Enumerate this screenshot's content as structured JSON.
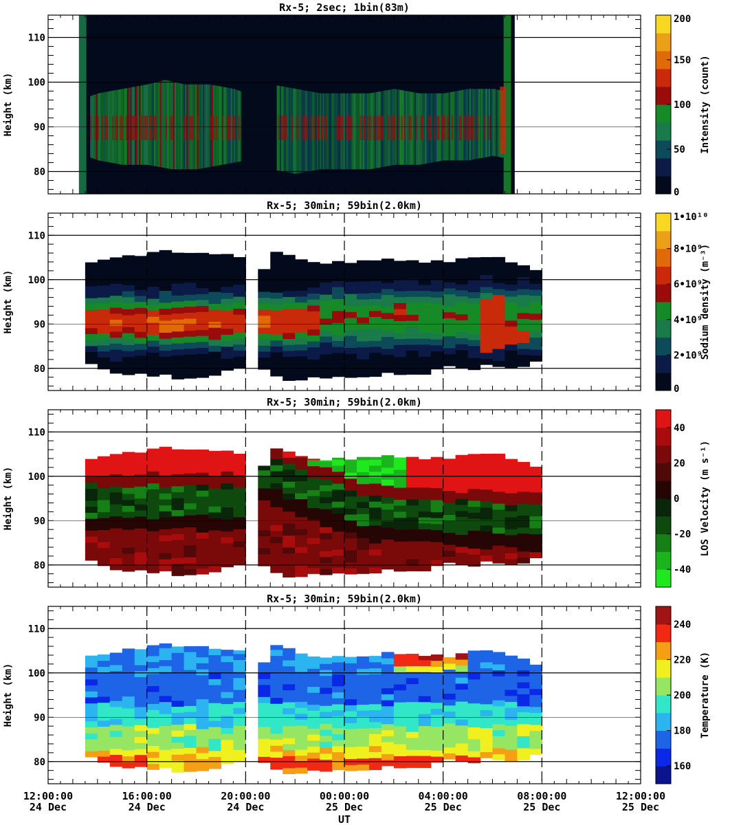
{
  "chart_data": [
    {
      "type": "heatmap",
      "title": "Rx-5;  2sec; 1bin(83m)",
      "ylabel": "Height (km)",
      "ylim": [
        75,
        115
      ],
      "yticks": [
        "80",
        "90",
        "100",
        "110"
      ],
      "colorbar_label": "Intensity (count)",
      "colorbar_ticks": [
        "0",
        "50",
        "100",
        "150",
        "200"
      ],
      "colorbar_range": [
        0,
        200
      ],
      "colors": [
        "#020a1c",
        "#0c1a48",
        "#0d4a5a",
        "#1a7a4a",
        "#178a28",
        "#9a0c0c",
        "#c82a0a",
        "#e06a08",
        "#eca018",
        "#f8d820"
      ]
    },
    {
      "type": "heatmap",
      "title": "Rx-5; 30min; 59bin(2.0km)",
      "ylabel": "Height (km)",
      "ylim": [
        75,
        115
      ],
      "yticks": [
        "80",
        "90",
        "100",
        "110"
      ],
      "colorbar_label": "Sodium density (m⁻³)",
      "colorbar_ticks": [
        "0",
        "2•10⁹",
        "4•10⁹",
        "6•10⁹",
        "8•10⁹",
        "1•10¹⁰"
      ],
      "colorbar_range": [
        0,
        10000000000
      ],
      "colors": [
        "#020a1c",
        "#0c1a48",
        "#0d4a5a",
        "#1a7a4a",
        "#178a28",
        "#9a0c0c",
        "#c82a0a",
        "#e06a08",
        "#eca018",
        "#f8d820"
      ]
    },
    {
      "type": "heatmap",
      "title": "Rx-5; 30min; 59bin(2.0km)",
      "ylabel": "Height (km)",
      "ylim": [
        75,
        115
      ],
      "yticks": [
        "80",
        "90",
        "100",
        "110"
      ],
      "colorbar_label": "LOS Velocity (m s⁻¹)",
      "colorbar_ticks": [
        "-40",
        "-20",
        "0",
        "20",
        "40"
      ],
      "colorbar_range": [
        -50,
        50
      ],
      "colors": [
        "#1ee81e",
        "#1cb41c",
        "#168016",
        "#0e4a0e",
        "#0a260a",
        "#260505",
        "#500808",
        "#7a0a0a",
        "#a80c0c",
        "#e01414"
      ]
    },
    {
      "type": "heatmap",
      "title": "Rx-5; 30min; 59bin(2.0km)",
      "ylabel": "Height (km)",
      "ylim": [
        75,
        115
      ],
      "yticks": [
        "80",
        "90",
        "100",
        "110"
      ],
      "colorbar_label": "Temperature (K)",
      "colorbar_ticks": [
        "160",
        "180",
        "200",
        "220",
        "240"
      ],
      "colorbar_range": [
        150,
        250
      ],
      "colors": [
        "#0a148c",
        "#0a28e6",
        "#1e64e6",
        "#2cb4f0",
        "#32e6c8",
        "#96e664",
        "#f0f01e",
        "#f5a014",
        "#f02814",
        "#a01414"
      ]
    }
  ],
  "x_axis": {
    "xlabel": "UT",
    "range_hours": [
      12,
      36
    ],
    "ticks": [
      {
        "hour": 12,
        "time": "12:00:00",
        "date": "24 Dec"
      },
      {
        "hour": 16,
        "time": "16:00:00",
        "date": "24 Dec"
      },
      {
        "hour": 20,
        "time": "20:00:00",
        "date": "24 Dec"
      },
      {
        "hour": 24,
        "time": "00:00:00",
        "date": "25 Dec"
      },
      {
        "hour": 28,
        "time": "04:00:00",
        "date": "25 Dec"
      },
      {
        "hour": 32,
        "time": "08:00:00",
        "date": "25 Dec"
      },
      {
        "hour": 36,
        "time": "12:00:00",
        "date": "25 Dec"
      }
    ]
  }
}
